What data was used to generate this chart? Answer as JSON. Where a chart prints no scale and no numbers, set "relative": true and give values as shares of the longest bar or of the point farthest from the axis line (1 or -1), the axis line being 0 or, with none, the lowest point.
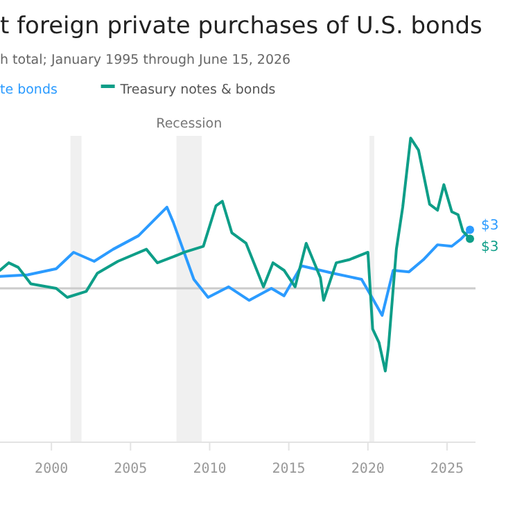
{
  "chart_data": {
    "type": "line",
    "title": "t foreign private purchases of U.S. bonds",
    "subtitle": "h total; January 1995 through June 15, 2026",
    "relative": true,
    "legend": "top left",
    "marker": "none",
    "xlim": [
      1996.75,
      2026.8
    ],
    "xticks": [
      2000,
      2005,
      2010,
      2015,
      2020,
      2025
    ],
    "bands": [
      {
        "axis": "x",
        "from": 2001.2,
        "to": 2001.9,
        "label": null,
        "color": "#f0f0f0"
      },
      {
        "axis": "x",
        "from": 2007.9,
        "to": 2009.5,
        "label": "Recession",
        "color": "#f0f0f0"
      },
      {
        "axis": "x",
        "from": 2020.1,
        "to": 2020.4,
        "label": null,
        "color": "#f0f0f0"
      }
    ],
    "series": [
      {
        "name": "te bonds",
        "color": "#2b9bff",
        "x": [
          1996.75,
          1998.5,
          2000.3,
          2001.4,
          2002.7,
          2003.9,
          2005.5,
          2007.3,
          2007.7,
          2009.0,
          2009.9,
          2011.2,
          2012.5,
          2013.9,
          2014.7,
          2015.8,
          2017.8,
          2019.6,
          2020.2,
          2020.9,
          2021.6,
          2022.6,
          2023.5,
          2024.4,
          2025.3,
          2025.9,
          2026.45
        ],
        "values": [
          0.08,
          0.09,
          0.13,
          0.24,
          0.18,
          0.26,
          0.35,
          0.54,
          0.44,
          0.06,
          -0.06,
          0.01,
          -0.08,
          0,
          -0.05,
          0.15,
          0.1,
          0.06,
          -0.05,
          -0.18,
          0.12,
          0.11,
          0.19,
          0.29,
          0.28,
          0.33,
          0.39
        ]
      },
      {
        "name": "Treasury notes & bonds",
        "color": "#0e9e88",
        "x": [
          1996.75,
          1997.3,
          1997.9,
          1998.7,
          2000.3,
          2001.0,
          2002.2,
          2002.9,
          2004.2,
          2006.0,
          2006.7,
          2007.7,
          2008.4,
          2009.6,
          2010.4,
          2010.8,
          2011.4,
          2012.3,
          2013.4,
          2014.0,
          2014.7,
          2015.4,
          2016.1,
          2017.0,
          2017.2,
          2018.0,
          2018.8,
          2020.0,
          2020.3,
          2020.7,
          2021.1,
          2021.3,
          2021.8,
          2022.2,
          2022.7,
          2023.2,
          2023.9,
          2024.4,
          2024.8,
          2025.3,
          2025.7,
          2026.0,
          2026.45
        ],
        "values": [
          0.12,
          0.17,
          0.14,
          0.03,
          0,
          -0.06,
          -0.02,
          0.1,
          0.18,
          0.26,
          0.17,
          0.21,
          0.24,
          0.28,
          0.55,
          0.58,
          0.37,
          0.3,
          0.01,
          0.17,
          0.12,
          0.01,
          0.3,
          0.07,
          -0.08,
          0.17,
          0.19,
          0.24,
          -0.27,
          -0.36,
          -0.55,
          -0.39,
          0.26,
          0.54,
          1,
          0.92,
          0.56,
          0.52,
          0.69,
          0.51,
          0.49,
          0.38,
          0.33
        ]
      }
    ],
    "annotations": [
      "$3",
      "$3"
    ]
  }
}
